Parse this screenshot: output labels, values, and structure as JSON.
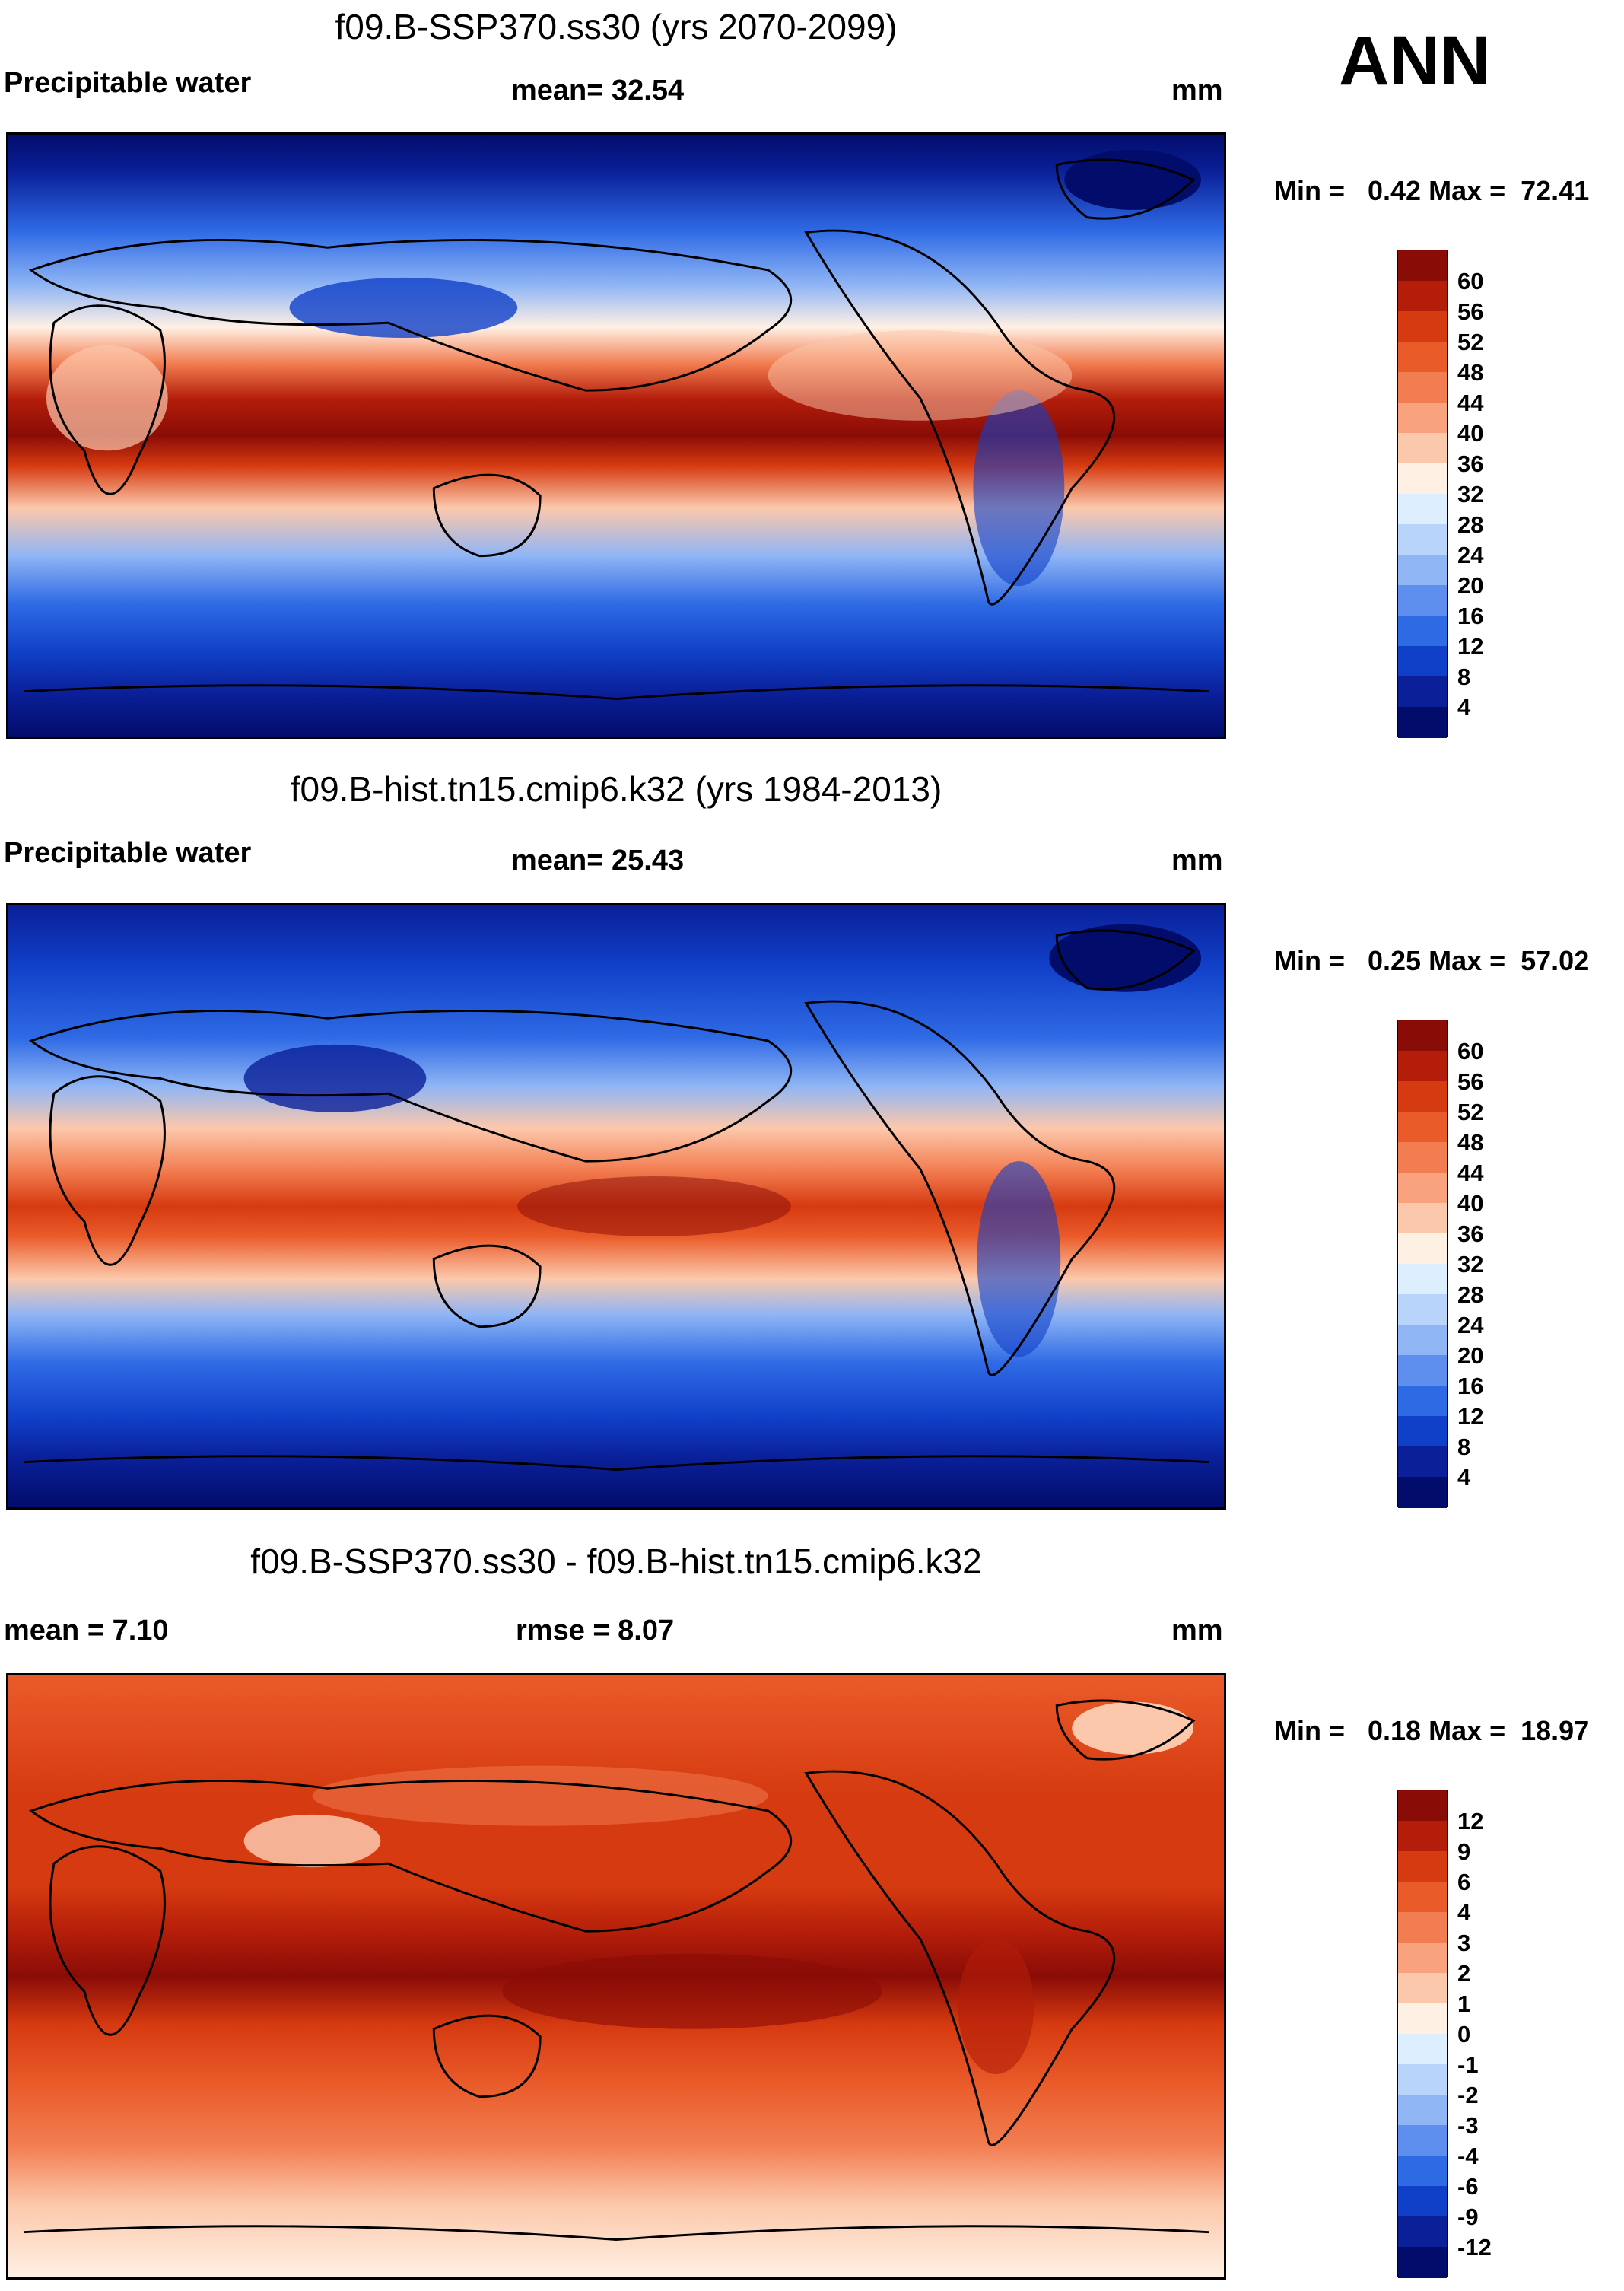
{
  "season": "ANN",
  "panels": [
    {
      "title": "f09.B-SSP370.ss30 (yrs 2070-2099)",
      "left_label": "Precipitable water",
      "stat_label": "mean=  32.54",
      "units": "mm",
      "minmax": "Min =   0.42 Max =  72.41",
      "colorbar": {
        "labels": [
          "60",
          "56",
          "52",
          "48",
          "44",
          "40",
          "36",
          "32",
          "28",
          "24",
          "20",
          "16",
          "12",
          "8",
          "4"
        ],
        "colors": [
          "#8a0c07",
          "#b31d0a",
          "#d63a10",
          "#ea5b2a",
          "#f27d51",
          "#f8a37e",
          "#fcc8ab",
          "#fff0e4",
          "#dceeff",
          "#b8d4fb",
          "#8fb5f5",
          "#5e8fee",
          "#2f6ae5",
          "#1040c8",
          "#0a1f98",
          "#020c6b"
        ]
      }
    },
    {
      "title": "f09.B-hist.tn15.cmip6.k32 (yrs 1984-2013)",
      "left_label": "Precipitable water",
      "stat_label": "mean=  25.43",
      "units": "mm",
      "minmax": "Min =   0.25 Max =  57.02",
      "colorbar": {
        "labels": [
          "60",
          "56",
          "52",
          "48",
          "44",
          "40",
          "36",
          "32",
          "28",
          "24",
          "20",
          "16",
          "12",
          "8",
          "4"
        ],
        "colors": [
          "#8a0c07",
          "#b31d0a",
          "#d63a10",
          "#ea5b2a",
          "#f27d51",
          "#f8a37e",
          "#fcc8ab",
          "#fff0e4",
          "#dceeff",
          "#b8d4fb",
          "#8fb5f5",
          "#5e8fee",
          "#2f6ae5",
          "#1040c8",
          "#0a1f98",
          "#020c6b"
        ]
      }
    },
    {
      "title": "f09.B-SSP370.ss30 - f09.B-hist.tn15.cmip6.k32",
      "left_label": "mean =    7.10",
      "stat_label": "rmse =    8.07",
      "units": "mm",
      "minmax": "Min =   0.18 Max =  18.97",
      "colorbar": {
        "labels": [
          "12",
          "9",
          "6",
          "4",
          "3",
          "2",
          "1",
          "0",
          "-1",
          "-2",
          "-3",
          "-4",
          "-6",
          "-9",
          "-12"
        ],
        "colors": [
          "#8a0c07",
          "#b31d0a",
          "#d63a10",
          "#ea5b2a",
          "#f27d51",
          "#f8a37e",
          "#fcc8ab",
          "#fff0e4",
          "#dceeff",
          "#b8d4fb",
          "#8fb5f5",
          "#5e8fee",
          "#2f6ae5",
          "#1040c8",
          "#0a1f98",
          "#020c6b"
        ]
      }
    }
  ]
}
